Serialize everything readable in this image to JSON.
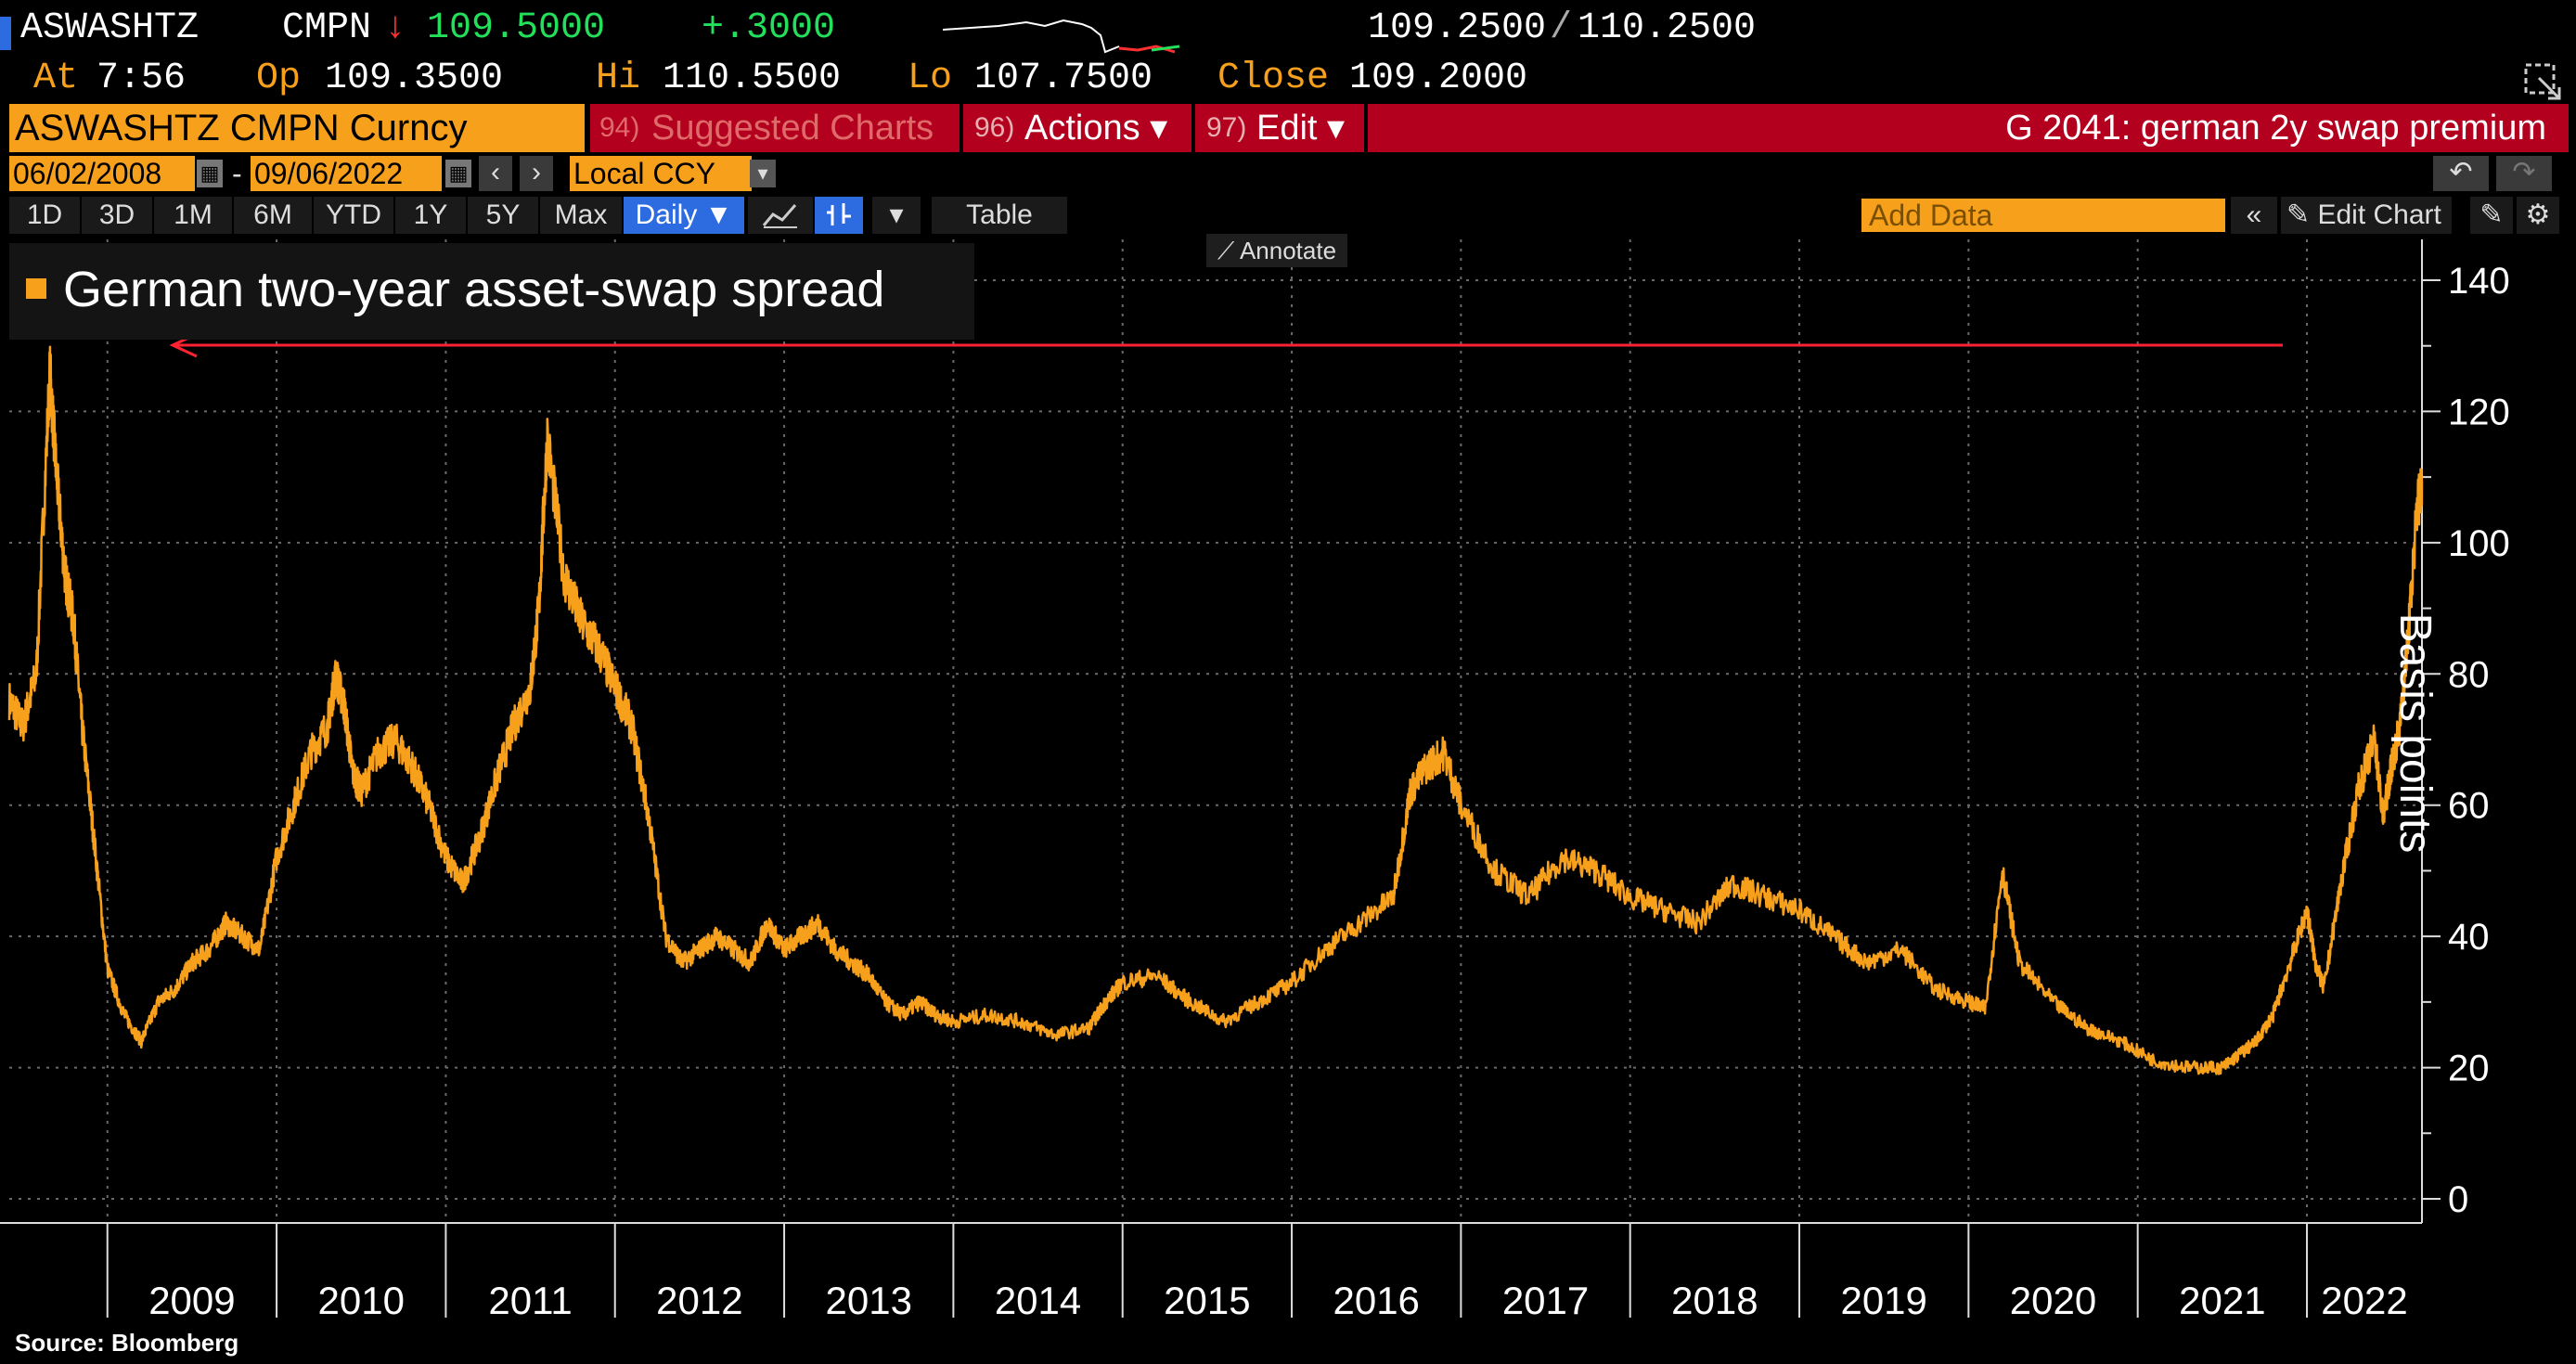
{
  "quote": {
    "ticker": "ASWASHTZ",
    "source": "CMPN",
    "arrow": "↓",
    "last": "109.5000",
    "change": "+.3000",
    "bid": "109.2500",
    "sep": "/",
    "ask": "110.2500",
    "at_label": "At",
    "at_value": "7:56",
    "op_label": "Op",
    "op_value": "109.3500",
    "hi_label": "Hi",
    "hi_value": "110.5500",
    "lo_label": "Lo",
    "lo_value": "107.7500",
    "close_label": "Close",
    "close_value": "109.2000"
  },
  "title_bar": {
    "security": "ASWASHTZ CMPN Curncy",
    "suggested_num": "94)",
    "suggested_label": "Suggested Charts",
    "actions_num": "96)",
    "actions_label": "Actions ▾",
    "edit_num": "97)",
    "edit_label": "Edit ▾",
    "chart_title": "G 2041: german 2y swap premium"
  },
  "range": {
    "start": "06/02/2008",
    "dash": "-",
    "end": "09/06/2022",
    "currency": "Local CCY"
  },
  "periods": [
    "1D",
    "3D",
    "1M",
    "6M",
    "YTD",
    "1Y",
    "5Y",
    "Max"
  ],
  "toolbar": {
    "frequency": "Daily ▼",
    "table": "Table",
    "add_data_placeholder": "Add Data",
    "edit_chart": "Edit Chart",
    "annotate": "Annotate"
  },
  "colors": {
    "series": "#f7a01c",
    "accent_blue": "#2d6be0",
    "title_bar": "#b2001e",
    "annotation_arrow": "#ff2233"
  },
  "source_note": "Source: Bloomberg",
  "chart_data": {
    "type": "line",
    "title": "",
    "xlabel": "",
    "ylabel": "Basis points",
    "ylim": [
      0,
      140
    ],
    "yticks": [
      0,
      20,
      40,
      60,
      80,
      100,
      120,
      140
    ],
    "xlim": [
      2008.42,
      2022.68
    ],
    "year_labels": [
      "2009",
      "2010",
      "2011",
      "2012",
      "2013",
      "2014",
      "2015",
      "2016",
      "2017",
      "2018",
      "2019",
      "2020",
      "2021",
      "2022"
    ],
    "legend_position": "top-left",
    "grid": true,
    "series": [
      {
        "name": "German two-year asset-swap spread",
        "x": [
          2008.42,
          2008.5,
          2008.58,
          2008.66,
          2008.7,
          2008.75,
          2008.8,
          2008.85,
          2008.92,
          2009.0,
          2009.1,
          2009.2,
          2009.3,
          2009.4,
          2009.5,
          2009.6,
          2009.7,
          2009.8,
          2009.9,
          2010.0,
          2010.1,
          2010.2,
          2010.3,
          2010.35,
          2010.4,
          2010.45,
          2010.5,
          2010.6,
          2010.7,
          2010.8,
          2010.9,
          2011.0,
          2011.1,
          2011.2,
          2011.3,
          2011.4,
          2011.5,
          2011.55,
          2011.6,
          2011.7,
          2011.8,
          2011.9,
          2012.0,
          2012.1,
          2012.2,
          2012.3,
          2012.4,
          2012.5,
          2012.6,
          2012.7,
          2012.8,
          2012.9,
          2013.0,
          2013.1,
          2013.2,
          2013.3,
          2013.4,
          2013.5,
          2013.6,
          2013.7,
          2013.8,
          2013.9,
          2014.0,
          2014.2,
          2014.4,
          2014.6,
          2014.8,
          2014.9,
          2015.0,
          2015.2,
          2015.4,
          2015.6,
          2015.8,
          2016.0,
          2016.2,
          2016.4,
          2016.6,
          2016.7,
          2016.8,
          2016.9,
          2017.0,
          2017.2,
          2017.4,
          2017.6,
          2017.8,
          2018.0,
          2018.2,
          2018.4,
          2018.6,
          2018.8,
          2019.0,
          2019.2,
          2019.4,
          2019.6,
          2019.8,
          2020.0,
          2020.1,
          2020.2,
          2020.3,
          2020.5,
          2020.7,
          2020.9,
          2021.1,
          2021.3,
          2021.5,
          2021.6,
          2021.7,
          2021.8,
          2021.9,
          2022.0,
          2022.05,
          2022.1,
          2022.2,
          2022.3,
          2022.4,
          2022.45,
          2022.5,
          2022.55,
          2022.6,
          2022.65,
          2022.68
        ],
        "values": [
          76,
          72,
          80,
          126,
          110,
          95,
          88,
          72,
          55,
          35,
          28,
          24,
          30,
          32,
          36,
          38,
          42,
          40,
          38,
          52,
          60,
          68,
          72,
          80,
          75,
          65,
          62,
          68,
          70,
          66,
          60,
          52,
          48,
          55,
          64,
          72,
          78,
          90,
          116,
          95,
          88,
          84,
          78,
          72,
          58,
          40,
          36,
          38,
          40,
          38,
          36,
          42,
          38,
          40,
          42,
          38,
          36,
          34,
          30,
          28,
          30,
          28,
          27,
          28,
          27,
          25,
          26,
          30,
          33,
          34,
          30,
          27,
          30,
          33,
          38,
          42,
          46,
          62,
          66,
          68,
          60,
          50,
          46,
          52,
          50,
          46,
          44,
          42,
          48,
          46,
          44,
          40,
          36,
          38,
          32,
          30,
          29,
          50,
          36,
          30,
          26,
          24,
          21,
          20,
          20,
          22,
          24,
          28,
          36,
          44,
          36,
          32,
          48,
          62,
          70,
          58,
          66,
          72,
          86,
          105,
          109.5
        ]
      }
    ]
  }
}
